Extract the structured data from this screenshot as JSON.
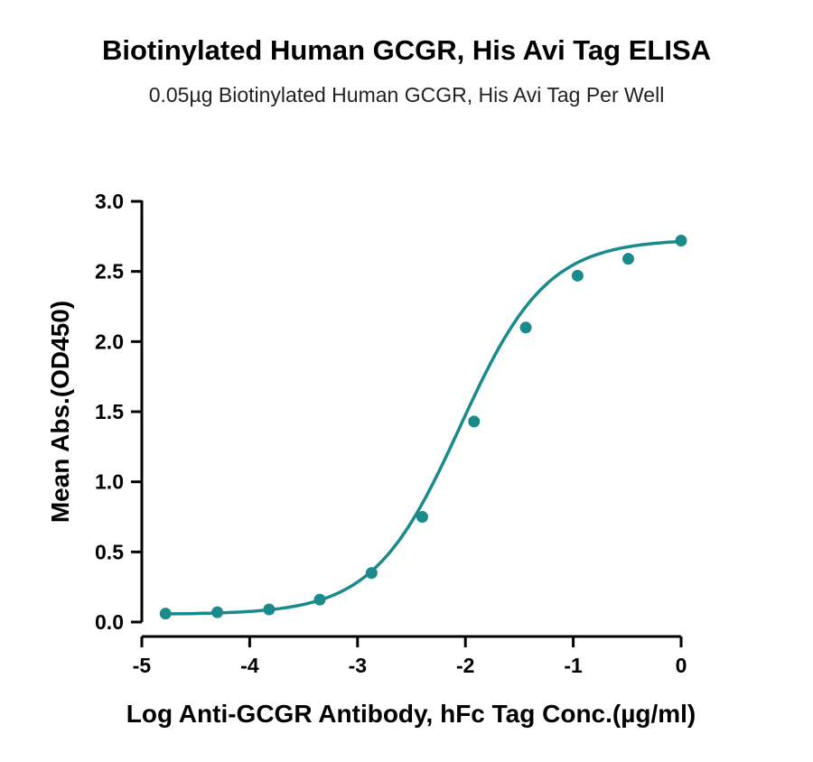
{
  "chart_data": {
    "type": "scatter",
    "title": "Biotinylated Human GCGR, His Avi Tag ELISA",
    "subtitle": "0.05µg Biotinylated Human GCGR, His Avi Tag Per Well",
    "xlabel": "Log Anti-GCGR Antibody, hFc Tag Conc.(µg/ml)",
    "ylabel": "Mean Abs.(OD450)",
    "xlim": [
      -5,
      0
    ],
    "ylim": [
      0,
      3.0
    ],
    "x_ticks": [
      "-5",
      "-4",
      "-3",
      "-2",
      "-1",
      "0"
    ],
    "y_ticks": [
      "0.0",
      "0.5",
      "1.0",
      "1.5",
      "2.0",
      "2.5",
      "3.0"
    ],
    "grid": false,
    "color": "#1a8a8a",
    "series": [
      {
        "x": [
          -4.78,
          -4.3,
          -3.82,
          -3.35,
          -2.87,
          -2.4,
          -1.92,
          -1.44,
          -0.96,
          -0.49,
          0.0
        ],
        "y": [
          0.06,
          0.07,
          0.09,
          0.16,
          0.35,
          0.75,
          1.43,
          2.1,
          2.47,
          2.59,
          2.72
        ]
      }
    ],
    "fit": {
      "model": "4PL",
      "bottom": 0.055,
      "top": 2.73,
      "log_ec50": -2.05,
      "hill": 1.08
    }
  }
}
